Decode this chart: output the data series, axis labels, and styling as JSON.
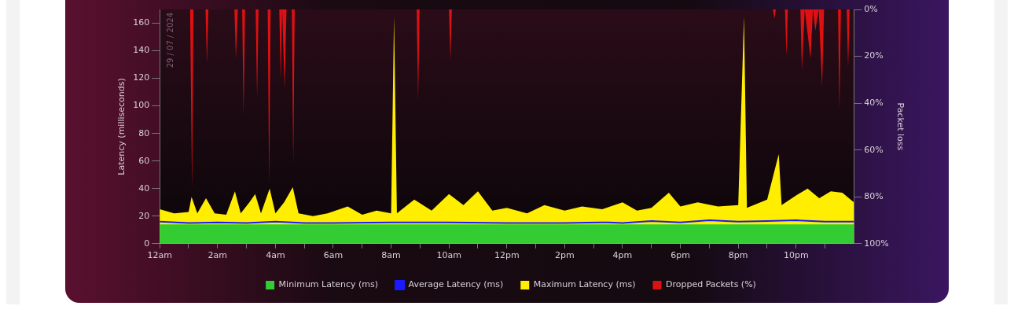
{
  "chart_data": {
    "type": "area",
    "ylabel": "Latency (milliseconds)",
    "y2label": "Packet loss",
    "annotations": [
      "29 / 07 / 2024"
    ],
    "xlim": [
      "2024-07-29T00:00",
      "2024-07-30T00:00"
    ],
    "xticks": [
      {
        "value": "2024-07-29T00:00",
        "label": "12am"
      },
      {
        "value": "2024-07-29T01:00",
        "label": null
      },
      {
        "value": "2024-07-29T02:00",
        "label": "2am"
      },
      {
        "value": "2024-07-29T03:00",
        "label": null
      },
      {
        "value": "2024-07-29T04:00",
        "label": "4am"
      },
      {
        "value": "2024-07-29T05:00",
        "label": null
      },
      {
        "value": "2024-07-29T06:00",
        "label": "6am"
      },
      {
        "value": "2024-07-29T07:00",
        "label": null
      },
      {
        "value": "2024-07-29T08:00",
        "label": "8am"
      },
      {
        "value": "2024-07-29T09:00",
        "label": null
      },
      {
        "value": "2024-07-29T10:00",
        "label": "10am"
      },
      {
        "value": "2024-07-29T11:00",
        "label": null
      },
      {
        "value": "2024-07-29T12:00",
        "label": "12pm"
      },
      {
        "value": "2024-07-29T13:00",
        "label": null
      },
      {
        "value": "2024-07-29T14:00",
        "label": "2pm"
      },
      {
        "value": "2024-07-29T15:00",
        "label": null
      },
      {
        "value": "2024-07-29T16:00",
        "label": "4pm"
      },
      {
        "value": "2024-07-29T17:00",
        "label": null
      },
      {
        "value": "2024-07-29T18:00",
        "label": "6pm"
      },
      {
        "value": "2024-07-29T19:00",
        "label": null
      },
      {
        "value": "2024-07-29T20:00",
        "label": "8pm"
      },
      {
        "value": "2024-07-29T21:00",
        "label": null
      },
      {
        "value": "2024-07-29T22:00",
        "label": "10pm"
      },
      {
        "value": "2024-07-29T23:00",
        "label": null
      }
    ],
    "ylim": [
      0,
      170
    ],
    "yticks": [
      0,
      20,
      40,
      60,
      80,
      100,
      120,
      140,
      160
    ],
    "y2lim": [
      100,
      0
    ],
    "y2ticks": [
      {
        "value": 0,
        "label": "0%"
      },
      {
        "value": 20,
        "label": "20%"
      },
      {
        "value": 40,
        "label": "40%"
      },
      {
        "value": 60,
        "label": "60%"
      },
      {
        "value": 80,
        "label": "80%"
      },
      {
        "value": 100,
        "label": "100%"
      }
    ],
    "grid": false,
    "legend": "bottom",
    "marker": "none",
    "line_style": "solid",
    "series": [
      {
        "name": "Minimum Latency (ms)",
        "color": "#33cc33",
        "x": [
          "2024-07-29T00:00",
          "2024-07-29T04:00",
          "2024-07-29T08:00",
          "2024-07-29T12:00",
          "2024-07-29T16:00",
          "2024-07-29T20:00",
          "2024-07-30T00:00"
        ],
        "values": [
          14,
          14,
          14,
          14,
          14,
          14,
          14
        ]
      },
      {
        "name": "Average Latency (ms)",
        "type": "line",
        "color": "#1a1aff",
        "x": [
          "2024-07-29T00:00",
          "2024-07-29T01:00",
          "2024-07-29T02:00",
          "2024-07-29T03:00",
          "2024-07-29T04:00",
          "2024-07-29T05:00",
          "2024-07-29T06:00",
          "2024-07-29T08:00",
          "2024-07-29T10:00",
          "2024-07-29T12:00",
          "2024-07-29T14:00",
          "2024-07-29T15:30",
          "2024-07-29T16:00",
          "2024-07-29T17:00",
          "2024-07-29T18:00",
          "2024-07-29T19:00",
          "2024-07-29T20:00",
          "2024-07-29T21:00",
          "2024-07-29T22:00",
          "2024-07-29T23:00",
          "2024-07-30T00:00"
        ],
        "values": [
          16,
          15,
          15.5,
          15,
          16,
          15,
          15,
          15.5,
          15.5,
          15,
          15,
          15.5,
          15,
          16.5,
          15.5,
          17,
          16,
          16.5,
          17,
          16,
          16
        ]
      },
      {
        "name": "Maximum Latency (ms)",
        "color": "#ffee00",
        "x": [
          "2024-07-29T00:00",
          "2024-07-29T00:30",
          "2024-07-29T01:00",
          "2024-07-29T01:06",
          "2024-07-29T01:18",
          "2024-07-29T01:36",
          "2024-07-29T01:54",
          "2024-07-29T02:18",
          "2024-07-29T02:36",
          "2024-07-29T02:48",
          "2024-07-29T03:06",
          "2024-07-29T03:18",
          "2024-07-29T03:30",
          "2024-07-29T03:48",
          "2024-07-29T04:00",
          "2024-07-29T04:18",
          "2024-07-29T04:36",
          "2024-07-29T04:48",
          "2024-07-29T05:18",
          "2024-07-29T05:48",
          "2024-07-29T06:30",
          "2024-07-29T07:00",
          "2024-07-29T07:30",
          "2024-07-29T08:00",
          "2024-07-29T08:06",
          "2024-07-29T08:12",
          "2024-07-29T08:48",
          "2024-07-29T09:24",
          "2024-07-29T10:00",
          "2024-07-29T10:30",
          "2024-07-29T11:00",
          "2024-07-29T11:30",
          "2024-07-29T12:00",
          "2024-07-29T12:42",
          "2024-07-29T13:18",
          "2024-07-29T14:00",
          "2024-07-29T14:36",
          "2024-07-29T15:18",
          "2024-07-29T16:00",
          "2024-07-29T16:30",
          "2024-07-29T17:00",
          "2024-07-29T17:36",
          "2024-07-29T18:00",
          "2024-07-29T18:36",
          "2024-07-29T19:18",
          "2024-07-29T20:00",
          "2024-07-29T20:12",
          "2024-07-29T20:18",
          "2024-07-29T21:00",
          "2024-07-29T21:24",
          "2024-07-29T21:30",
          "2024-07-29T22:00",
          "2024-07-29T22:24",
          "2024-07-29T22:48",
          "2024-07-29T23:12",
          "2024-07-29T23:36",
          "2024-07-30T00:00"
        ],
        "values": [
          25,
          22,
          23,
          34,
          22,
          33,
          22,
          21,
          38,
          22,
          30,
          36,
          22,
          40,
          22,
          30,
          41,
          22,
          20,
          22,
          27,
          21,
          24,
          22,
          165,
          22,
          32,
          24,
          36,
          28,
          38,
          24,
          26,
          22,
          28,
          24,
          27,
          25,
          30,
          24,
          26,
          37,
          27,
          30,
          27,
          28,
          165,
          26,
          32,
          65,
          28,
          35,
          40,
          33,
          38,
          37,
          30
        ]
      },
      {
        "name": "Dropped Packets (%)",
        "axis": "y2",
        "color": "#dd1111",
        "x": [
          "2024-07-29T00:00",
          "2024-07-29T01:03",
          "2024-07-29T01:07",
          "2024-07-29T01:10",
          "2024-07-29T01:35",
          "2024-07-29T01:38",
          "2024-07-29T01:41",
          "2024-07-29T02:35",
          "2024-07-29T02:38",
          "2024-07-29T02:42",
          "2024-07-29T02:51",
          "2024-07-29T02:54",
          "2024-07-29T02:57",
          "2024-07-29T03:19",
          "2024-07-29T03:22",
          "2024-07-29T03:25",
          "2024-07-29T03:44",
          "2024-07-29T03:47",
          "2024-07-29T03:50",
          "2024-07-29T04:08",
          "2024-07-29T04:11",
          "2024-07-29T04:14",
          "2024-07-29T04:19",
          "2024-07-29T04:23",
          "2024-07-29T04:34",
          "2024-07-29T04:37",
          "2024-07-29T04:40",
          "2024-07-29T08:53",
          "2024-07-29T08:56",
          "2024-07-29T08:59",
          "2024-07-29T10:00",
          "2024-07-29T10:03",
          "2024-07-29T10:06",
          "2024-07-29T21:12",
          "2024-07-29T21:15",
          "2024-07-29T21:18",
          "2024-07-29T21:37",
          "2024-07-29T21:40",
          "2024-07-29T21:43",
          "2024-07-29T22:09",
          "2024-07-29T22:12",
          "2024-07-29T22:18",
          "2024-07-29T22:30",
          "2024-07-29T22:35",
          "2024-07-29T22:40",
          "2024-07-29T22:47",
          "2024-07-29T22:54",
          "2024-07-29T22:58",
          "2024-07-29T23:27",
          "2024-07-29T23:30",
          "2024-07-29T23:33",
          "2024-07-29T23:45",
          "2024-07-29T23:48",
          "2024-07-29T23:51",
          "2024-07-30T00:00"
        ],
        "values": [
          0,
          0,
          77,
          0,
          0,
          23,
          0,
          0,
          21,
          0,
          0,
          45,
          0,
          0,
          38,
          0,
          0,
          75,
          0,
          0,
          30,
          0,
          34,
          0,
          0,
          66,
          0,
          0,
          39,
          0,
          0,
          22,
          0,
          0,
          4,
          0,
          0,
          20,
          0,
          0,
          26,
          0,
          21,
          0,
          9,
          0,
          33,
          0,
          0,
          43,
          0,
          0,
          25,
          0,
          0
        ]
      }
    ]
  }
}
